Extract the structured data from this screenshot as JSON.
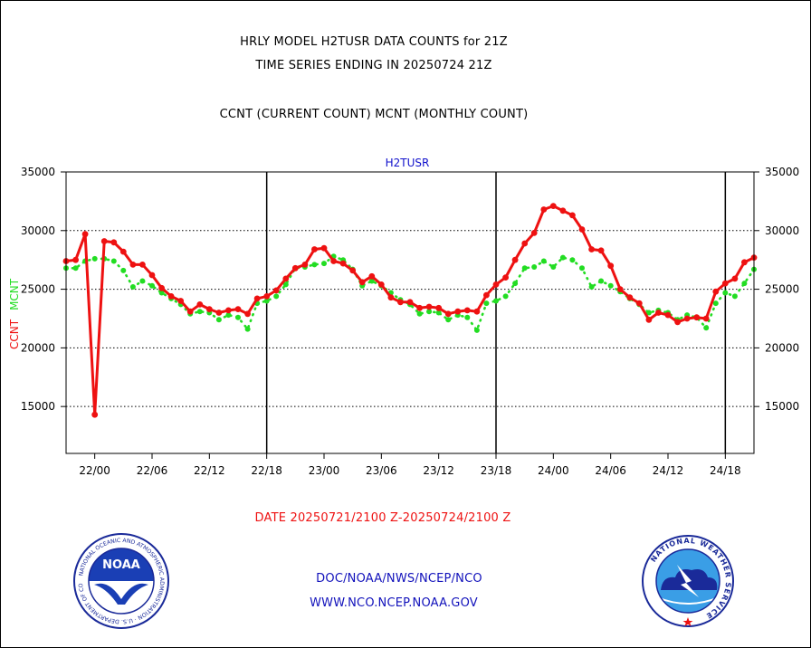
{
  "header": {
    "title_line1": "HRLY MODEL H2TUSR DATA COUNTS for 21Z",
    "title_line2": "TIME SERIES ENDING IN 20250724 21Z",
    "subtitle": "CCNT (CURRENT COUNT) MCNT (MONTHLY COUNT)"
  },
  "footer": {
    "date_range": "DATE 20250721/2100 Z-20250724/2100 Z",
    "org_line": "DOC/NOAA/NWS/NCEP/NCO",
    "url_line": "WWW.NCO.NCEP.NOAA.GOV"
  },
  "logos": {
    "noaa_text": "NOAA",
    "noaa_ring": "NATIONAL OCEANIC AND ATMOSPHERIC ADMINISTRATION · U.S. DEPARTMENT OF COMMERCE",
    "nws_ring": "NATIONAL WEATHER SERVICE"
  },
  "colors": {
    "ccnt": "#ee1111",
    "mcnt": "#22dd22",
    "series_title": "#1111cc",
    "footer_blue": "#1111bb",
    "date_red": "#ee1111"
  },
  "chart_data": {
    "type": "line",
    "title": "H2TUSR",
    "ylabel_left": [
      "CCNT",
      "MCNT"
    ],
    "ylim": [
      11000,
      35000
    ],
    "yticks": [
      15000,
      20000,
      25000,
      30000,
      35000
    ],
    "ytick_labels": [
      "15000",
      "20000",
      "25000",
      "30000",
      "35000"
    ],
    "x_hours_ticks": [
      3,
      9,
      15,
      21,
      27,
      33,
      39,
      45,
      51,
      57,
      63,
      69
    ],
    "xtick_labels": [
      "22/00",
      "22/06",
      "22/12",
      "22/18",
      "23/00",
      "23/06",
      "23/12",
      "23/18",
      "24/00",
      "24/06",
      "24/12",
      "24/18"
    ],
    "day_boundaries_hours": [
      21,
      45,
      69
    ],
    "grid_y": [
      15000,
      20000,
      25000,
      30000
    ],
    "x_range_hours": [
      0,
      72
    ],
    "series": [
      {
        "name": "CCNT",
        "color": "#ee1111",
        "values": [
          27400,
          27500,
          29700,
          14300,
          29100,
          29000,
          28200,
          27100,
          27100,
          26200,
          25100,
          24400,
          24000,
          23100,
          23700,
          23300,
          23000,
          23200,
          23300,
          22900,
          24200,
          24400,
          24900,
          25900,
          26800,
          27100,
          28400,
          28500,
          27400,
          27200,
          26600,
          25600,
          26100,
          25400,
          24300,
          23900,
          23900,
          23400,
          23500,
          23400,
          22900,
          23100,
          23200,
          23100,
          24500,
          25400,
          26000,
          27500,
          28900,
          29800,
          31800,
          32100,
          31700,
          31300,
          30100,
          28400,
          28300,
          27000,
          25000,
          24300,
          23800,
          22400,
          23000,
          22800,
          22200,
          22500,
          22600,
          22500,
          24800,
          25500,
          25900,
          27300,
          27700
        ]
      },
      {
        "name": "MCNT",
        "color": "#22dd22",
        "values": [
          26800,
          26800,
          27400,
          27600,
          27600,
          27400,
          26600,
          25200,
          25700,
          25300,
          24700,
          24200,
          23700,
          22900,
          23100,
          23000,
          22400,
          22800,
          22600,
          21600,
          23800,
          24000,
          24400,
          25400,
          26800,
          26900,
          27100,
          27200,
          27800,
          27500,
          26700,
          25300,
          25700,
          25300,
          24700,
          24100,
          23700,
          22900,
          23100,
          23000,
          22400,
          22800,
          22600,
          21500,
          23800,
          24000,
          24400,
          25500,
          26800,
          26900,
          27400,
          26900,
          27700,
          27500,
          26800,
          25200,
          25700,
          25300,
          24800,
          24200,
          23700,
          23000,
          23200,
          23000,
          22400,
          22800,
          22600,
          21700,
          23800,
          24700,
          24400,
          25500,
          26700
        ]
      }
    ]
  }
}
